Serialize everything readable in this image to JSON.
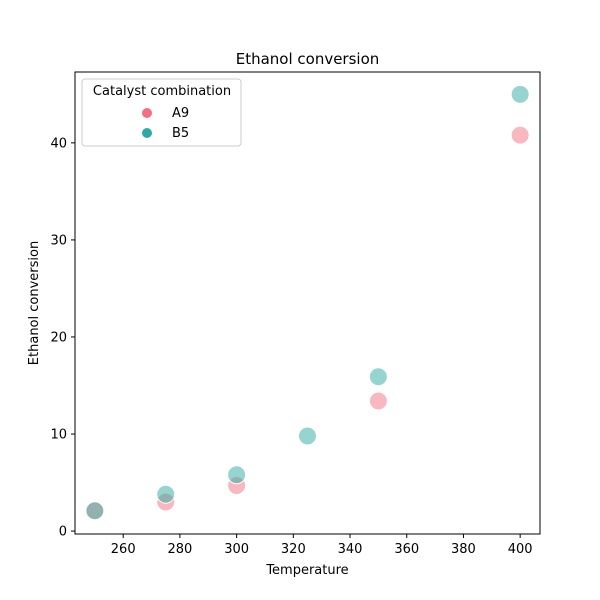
{
  "chart_data": {
    "type": "scatter",
    "title": "Ethanol conversion",
    "xlabel": "Temperature",
    "ylabel": "Ethanol conversion",
    "xlim": [
      243,
      407
    ],
    "ylim": [
      -0.3,
      47.3
    ],
    "xticks": [
      260,
      280,
      300,
      320,
      340,
      360,
      380,
      400
    ],
    "yticks": [
      0,
      10,
      20,
      30,
      40
    ],
    "grid": false,
    "legend": {
      "title": "Catalyst combination",
      "placement": "top-left"
    },
    "series": [
      {
        "name": "A9",
        "color": "#f0717f",
        "x": [
          250,
          275,
          300,
          350,
          400
        ],
        "y": [
          2.1,
          3.0,
          4.7,
          13.4,
          40.8
        ]
      },
      {
        "name": "B5",
        "color": "#2fa9a2",
        "x": [
          250,
          275,
          300,
          325,
          350,
          400
        ],
        "y": [
          2.1,
          3.8,
          5.8,
          9.8,
          15.9,
          45.0
        ]
      }
    ]
  }
}
